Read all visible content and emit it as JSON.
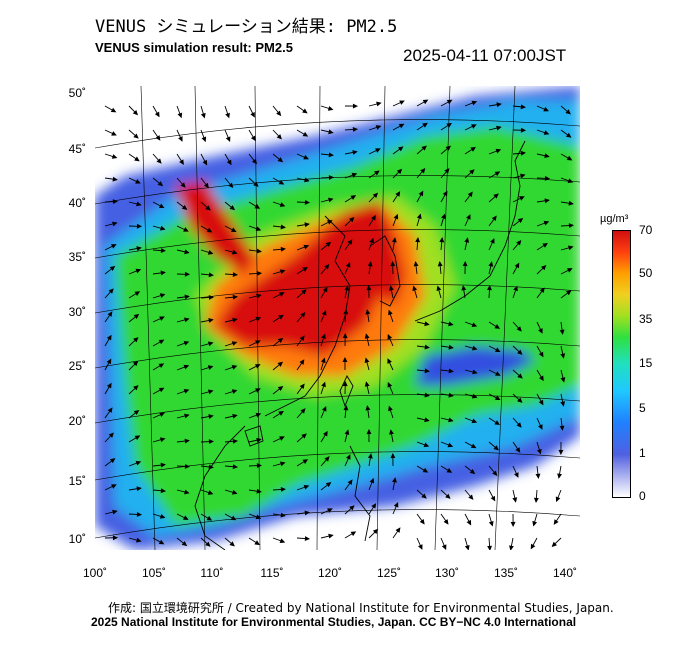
{
  "header": {
    "title_ja": "VENUS シミュレーション結果: PM2.5",
    "title_en": "VENUS simulation result: PM2.5",
    "timestamp": "2025-04-11 07:00JST"
  },
  "map": {
    "lat_labels": [
      "50˚",
      "45˚",
      "40˚",
      "35˚",
      "30˚",
      "25˚",
      "20˚",
      "15˚",
      "10˚"
    ],
    "lon_labels": [
      "100˚",
      "105˚",
      "110˚",
      "115˚",
      "120˚",
      "125˚",
      "130˚",
      "135˚",
      "140˚"
    ],
    "colors": {
      "very_high": "#d81010",
      "high": "#ff7a10",
      "medium": "#30d830",
      "low": "#20b0f0",
      "very_low": "#3050e0",
      "background": "#ffffff"
    }
  },
  "legend": {
    "unit": "µg/m³",
    "ticks": [
      "70",
      "50",
      "35",
      "15",
      "5",
      "1",
      "0"
    ]
  },
  "footer": {
    "credit_line1": "作成: 国立環境研究所 / Created by National Institute for Environmental Studies, Japan.",
    "credit_line2": "2025 National Institute for Environmental Studies, Japan. CC BY−NC 4.0 International"
  }
}
